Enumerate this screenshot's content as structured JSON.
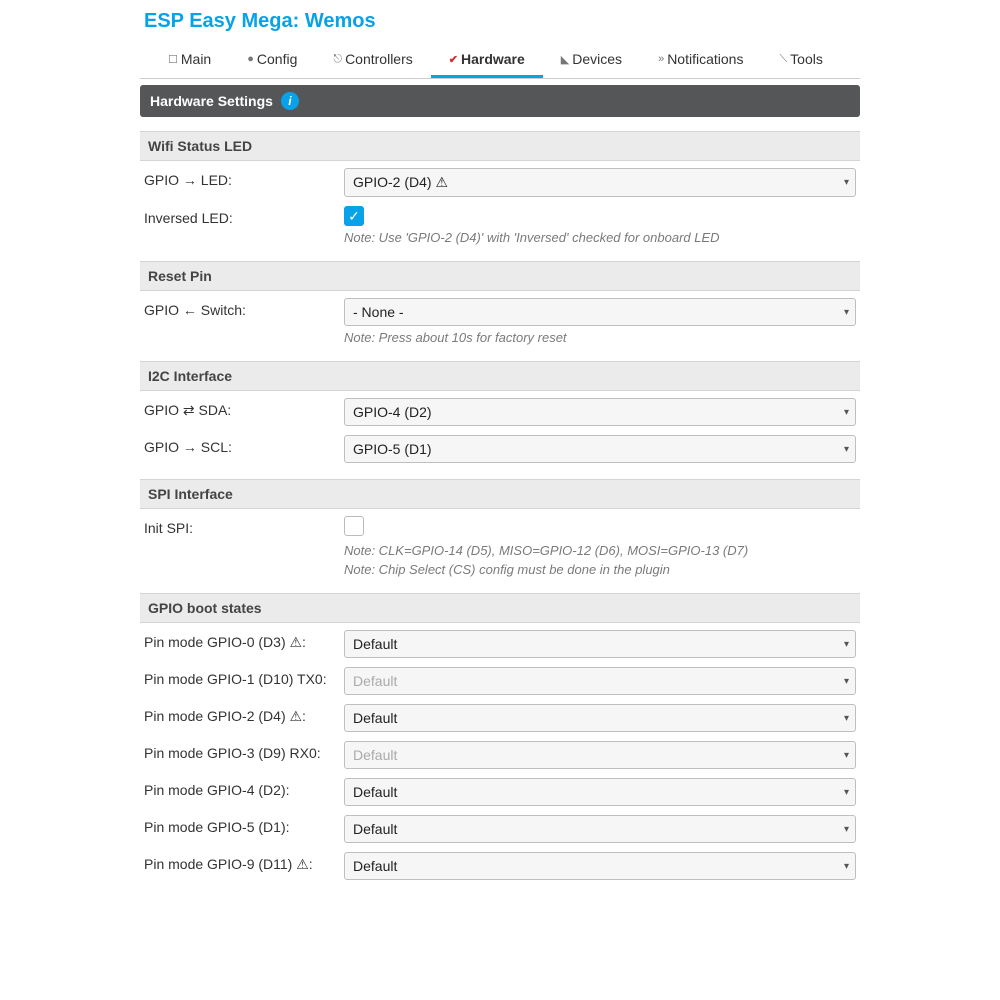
{
  "title": "ESP Easy Mega: Wemos",
  "tabs": [
    {
      "icon": "☐",
      "label": "Main"
    },
    {
      "icon": "●",
      "label": "Config"
    },
    {
      "icon": "⎋",
      "label": "Controllers"
    },
    {
      "icon": "✔",
      "label": "Hardware",
      "active": true
    },
    {
      "icon": "◣",
      "label": "Devices"
    },
    {
      "icon": "»",
      "label": "Notifications"
    },
    {
      "icon": "⟍",
      "label": "Tools"
    }
  ],
  "header": "Hardware Settings",
  "sections": {
    "wifi": {
      "title": "Wifi Status LED",
      "led_label": "GPIO → LED:",
      "led_value": "GPIO-2 (D4) ⚠",
      "inv_label": "Inversed LED:",
      "inv_checked": true,
      "note": "Note: Use 'GPIO-2 (D4)' with 'Inversed' checked for onboard LED"
    },
    "reset": {
      "title": "Reset Pin",
      "sw_label": "GPIO ← Switch:",
      "sw_value": "- None -",
      "note": "Note: Press about 10s for factory reset"
    },
    "i2c": {
      "title": "I2C Interface",
      "sda_label": "GPIO ⇄ SDA:",
      "sda_value": "GPIO-4 (D2)",
      "scl_label": "GPIO → SCL:",
      "scl_value": "GPIO-5 (D1)"
    },
    "spi": {
      "title": "SPI Interface",
      "init_label": "Init SPI:",
      "init_checked": false,
      "note1": "Note: CLK=GPIO-14 (D5), MISO=GPIO-12 (D6), MOSI=GPIO-13 (D7)",
      "note2": "Note: Chip Select (CS) config must be done in the plugin"
    },
    "gpio": {
      "title": "GPIO boot states",
      "pins": [
        {
          "label": "Pin mode GPIO-0 (D3) ⚠:",
          "value": "Default",
          "disabled": false
        },
        {
          "label": "Pin mode GPIO-1 (D10) TX0:",
          "value": "Default",
          "disabled": true
        },
        {
          "label": "Pin mode GPIO-2 (D4) ⚠:",
          "value": "Default",
          "disabled": false
        },
        {
          "label": "Pin mode GPIO-3 (D9) RX0:",
          "value": "Default",
          "disabled": true
        },
        {
          "label": "Pin mode GPIO-4 (D2):",
          "value": "Default",
          "disabled": false
        },
        {
          "label": "Pin mode GPIO-5 (D1):",
          "value": "Default",
          "disabled": false
        },
        {
          "label": "Pin mode GPIO-9 (D11) ⚠:",
          "value": "Default",
          "disabled": false
        }
      ]
    }
  }
}
